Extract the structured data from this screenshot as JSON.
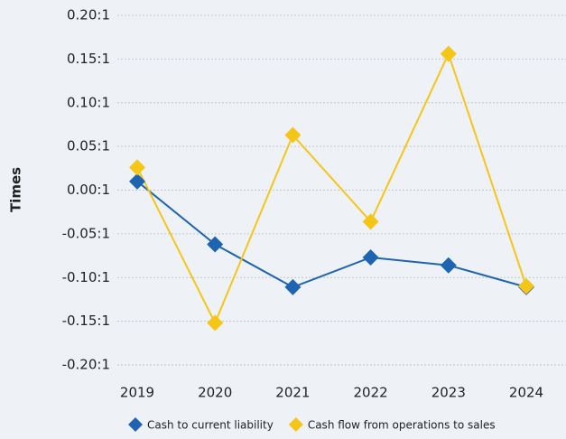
{
  "chart_data": {
    "type": "line",
    "y_label": "Times",
    "categories": [
      "2019",
      "2020",
      "2021",
      "2022",
      "2023",
      "2024"
    ],
    "series": [
      {
        "name": "Cash to current liability",
        "color": "#1f64b0",
        "values": [
          0.01,
          -0.062,
          -0.111,
          -0.077,
          -0.086,
          -0.111
        ]
      },
      {
        "name": "Cash flow from operations to sales",
        "color": "#f5c518",
        "values": [
          0.026,
          -0.152,
          0.063,
          -0.036,
          0.156,
          -0.11
        ]
      }
    ],
    "ylim": [
      -0.2,
      0.2
    ],
    "yticks": [
      {
        "value": 0.2,
        "label": "0.20:1"
      },
      {
        "value": 0.15,
        "label": "0.15:1"
      },
      {
        "value": 0.1,
        "label": "0.10:1"
      },
      {
        "value": 0.05,
        "label": "0.05:1"
      },
      {
        "value": 0,
        "label": "0.00:1"
      },
      {
        "value": -0.05,
        "label": "-0.05:1"
      },
      {
        "value": -0.1,
        "label": "-0.10:1"
      },
      {
        "value": -0.15,
        "label": "-0.15:1"
      },
      {
        "value": -0.2,
        "label": "-0.20:1"
      }
    ],
    "grid": true,
    "legend": "bottom"
  }
}
